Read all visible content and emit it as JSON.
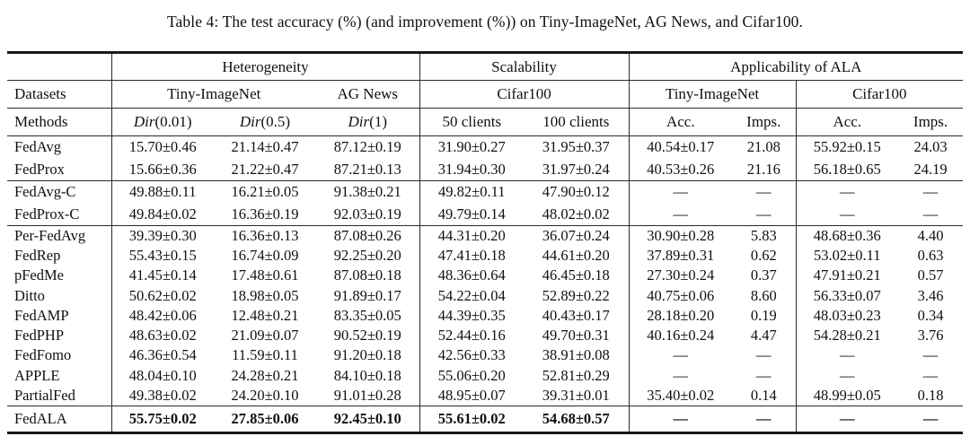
{
  "caption": "Table 4: The test accuracy (%) (and improvement (%)) on Tiny-ImageNet, AG News, and Cifar100.",
  "table": {
    "corner": "",
    "groups_row": {
      "heterogeneity": "Heterogeneity",
      "scalability": "Scalability",
      "applicability": "Applicability of ALA"
    },
    "datasets_row": {
      "label": "Datasets",
      "cells": [
        "Tiny-ImageNet",
        "AG News",
        "Cifar100",
        "Tiny-ImageNet",
        "Cifar100"
      ]
    },
    "methods_row": {
      "label": "Methods",
      "cells": [
        {
          "it": "Dir",
          "rm": "(0.01)"
        },
        {
          "it": "Dir",
          "rm": "(0.5)"
        },
        {
          "it": "Dir",
          "rm": "(1)"
        },
        {
          "rm": "50 clients"
        },
        {
          "rm": "100 clients"
        },
        {
          "rm": "Acc."
        },
        {
          "rm": "Imps."
        },
        {
          "rm": "Acc."
        },
        {
          "rm": "Imps."
        }
      ]
    },
    "body": [
      {
        "name": "group-traditional",
        "emphasis": false,
        "rows": [
          {
            "method": "FedAvg",
            "values": [
              "15.70±0.46",
              "21.14±0.47",
              "87.12±0.19",
              "31.90±0.27",
              "31.95±0.37",
              "40.54±0.17",
              "21.08",
              "55.92±0.15",
              "24.03"
            ]
          },
          {
            "method": "FedProx",
            "values": [
              "15.66±0.36",
              "21.22±0.47",
              "87.21±0.13",
              "31.94±0.30",
              "31.97±0.24",
              "40.53±0.26",
              "21.16",
              "56.18±0.65",
              "24.19"
            ]
          }
        ]
      },
      {
        "name": "group-client-variants",
        "emphasis": false,
        "rows": [
          {
            "method": "FedAvg-C",
            "values": [
              "49.88±0.11",
              "16.21±0.05",
              "91.38±0.21",
              "49.82±0.11",
              "47.90±0.12",
              "—",
              "—",
              "—",
              "—"
            ]
          },
          {
            "method": "FedProx-C",
            "values": [
              "49.84±0.02",
              "16.36±0.19",
              "92.03±0.19",
              "49.79±0.14",
              "48.02±0.02",
              "—",
              "—",
              "—",
              "—"
            ]
          }
        ]
      },
      {
        "name": "group-personalized",
        "emphasis": false,
        "rows": [
          {
            "method": "Per-FedAvg",
            "values": [
              "39.39±0.30",
              "16.36±0.13",
              "87.08±0.26",
              "44.31±0.20",
              "36.07±0.24",
              "30.90±0.28",
              "5.83",
              "48.68±0.36",
              "4.40"
            ]
          },
          {
            "method": "FedRep",
            "values": [
              "55.43±0.15",
              "16.74±0.09",
              "92.25±0.20",
              "47.41±0.18",
              "44.61±0.20",
              "37.89±0.31",
              "0.62",
              "53.02±0.11",
              "0.63"
            ]
          },
          {
            "method": "pFedMe",
            "values": [
              "41.45±0.14",
              "17.48±0.61",
              "87.08±0.18",
              "48.36±0.64",
              "46.45±0.18",
              "27.30±0.24",
              "0.37",
              "47.91±0.21",
              "0.57"
            ]
          },
          {
            "method": "Ditto",
            "values": [
              "50.62±0.02",
              "18.98±0.05",
              "91.89±0.17",
              "54.22±0.04",
              "52.89±0.22",
              "40.75±0.06",
              "8.60",
              "56.33±0.07",
              "3.46"
            ]
          },
          {
            "method": "FedAMP",
            "values": [
              "48.42±0.06",
              "12.48±0.21",
              "83.35±0.05",
              "44.39±0.35",
              "40.43±0.17",
              "28.18±0.20",
              "0.19",
              "48.03±0.23",
              "0.34"
            ]
          },
          {
            "method": "FedPHP",
            "values": [
              "48.63±0.02",
              "21.09±0.07",
              "90.52±0.19",
              "52.44±0.16",
              "49.70±0.31",
              "40.16±0.24",
              "4.47",
              "54.28±0.21",
              "3.76"
            ]
          },
          {
            "method": "FedFomo",
            "values": [
              "46.36±0.54",
              "11.59±0.11",
              "91.20±0.18",
              "42.56±0.33",
              "38.91±0.08",
              "—",
              "—",
              "—",
              "—"
            ]
          },
          {
            "method": "APPLE",
            "values": [
              "48.04±0.10",
              "24.28±0.21",
              "84.10±0.18",
              "55.06±0.20",
              "52.81±0.29",
              "—",
              "—",
              "—",
              "—"
            ]
          },
          {
            "method": "PartialFed",
            "values": [
              "49.38±0.02",
              "24.20±0.10",
              "91.01±0.28",
              "48.95±0.07",
              "39.31±0.01",
              "35.40±0.02",
              "0.14",
              "48.99±0.05",
              "0.18"
            ]
          }
        ]
      },
      {
        "name": "group-fedala",
        "emphasis": true,
        "rows": [
          {
            "method": "FedALA",
            "values": [
              "55.75±0.02",
              "27.85±0.06",
              "92.45±0.10",
              "55.61±0.02",
              "54.68±0.57",
              "—",
              "—",
              "—",
              "—"
            ]
          }
        ]
      }
    ]
  }
}
